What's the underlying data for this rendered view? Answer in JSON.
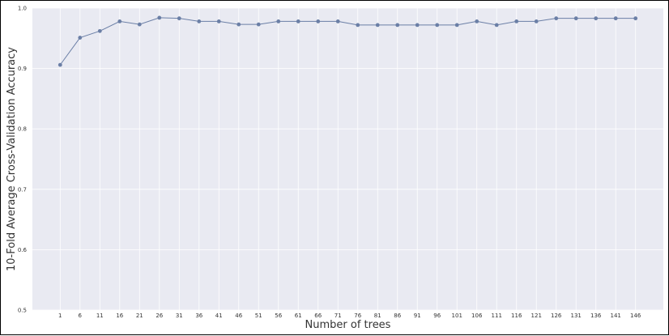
{
  "chart_data": {
    "type": "line",
    "title": "",
    "xlabel": "Number of trees",
    "ylabel": "10-Fold Average Cross-Validation Accuracy",
    "ylim": [
      0.5,
      1.0
    ],
    "yticks": [
      "0.5",
      "0.6",
      "0.7",
      "0.8",
      "0.9",
      "1.0"
    ],
    "x": [
      1,
      6,
      11,
      16,
      21,
      26,
      31,
      36,
      41,
      46,
      51,
      56,
      61,
      66,
      71,
      76,
      81,
      86,
      91,
      96,
      101,
      106,
      111,
      116,
      121,
      126,
      131,
      136,
      141,
      146
    ],
    "series": [
      {
        "values": [
          0.906,
          0.951,
          0.962,
          0.978,
          0.973,
          0.984,
          0.983,
          0.978,
          0.978,
          0.973,
          0.973,
          0.978,
          0.978,
          0.978,
          0.978,
          0.972,
          0.972,
          0.972,
          0.972,
          0.972,
          0.972,
          0.978,
          0.972,
          0.978,
          0.978,
          0.983,
          0.983,
          0.983,
          0.983,
          0.983
        ]
      }
    ],
    "grid": true,
    "colors": {
      "background": "#e9eaf2",
      "line": "#6b7fa6",
      "grid": "#ffffff"
    }
  }
}
